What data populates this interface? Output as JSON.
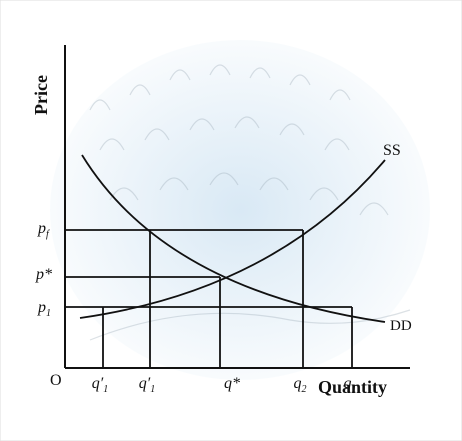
{
  "axes": {
    "y_label": "Price",
    "x_label": "Quantity",
    "origin": "O"
  },
  "curves": {
    "supply": "SS",
    "demand": "DD"
  },
  "price_labels": [
    {
      "base": "p",
      "sub": "f"
    },
    {
      "base": "p*"
    },
    {
      "base": "p",
      "sub": "1"
    }
  ],
  "quantity_labels": [
    {
      "base": "q′",
      "sub": "1"
    },
    {
      "base": "q′",
      "sub": "1"
    },
    {
      "base": "q*"
    },
    {
      "base": "q",
      "sub": "2"
    },
    {
      "base": "q",
      "sub": "1"
    }
  ]
}
